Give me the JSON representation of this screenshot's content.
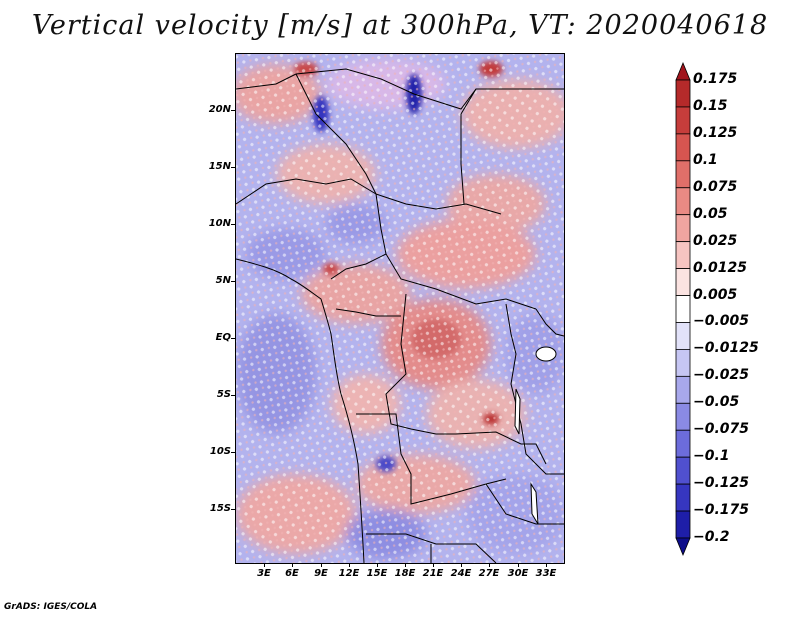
{
  "title": "Vertical velocity [m/s] at 300hPa, VT: 2020040618",
  "footer": "GrADS: IGES/COLA",
  "map": {
    "region": "Central Africa",
    "lat_labels": [
      "20N",
      "15N",
      "10N",
      "5N",
      "EQ",
      "5S",
      "10S",
      "15S"
    ],
    "lon_labels": [
      "3E",
      "6E",
      "9E",
      "12E",
      "15E",
      "18E",
      "21E",
      "24E",
      "27E",
      "30E",
      "33E"
    ]
  },
  "colorbar": {
    "labels": [
      "0.175",
      "0.15",
      "0.125",
      "0.1",
      "0.075",
      "0.05",
      "0.025",
      "0.0125",
      "0.005",
      "−0.005",
      "−0.0125",
      "−0.025",
      "−0.05",
      "−0.075",
      "−0.1",
      "−0.125",
      "−0.175",
      "−0.2"
    ],
    "colors": [
      "#a1141c",
      "#b52a2a",
      "#c63d3b",
      "#d65550",
      "#e06f69",
      "#e98a84",
      "#f0a5a0",
      "#f6c4c1",
      "#fbe3e1",
      "#ffffff",
      "#e2e2f9",
      "#c6c6f3",
      "#a8a8ec",
      "#8a8ae4",
      "#6c6cdb",
      "#5050cf",
      "#3636c0",
      "#1e1ea8",
      "#0d0d8a"
    ]
  }
}
